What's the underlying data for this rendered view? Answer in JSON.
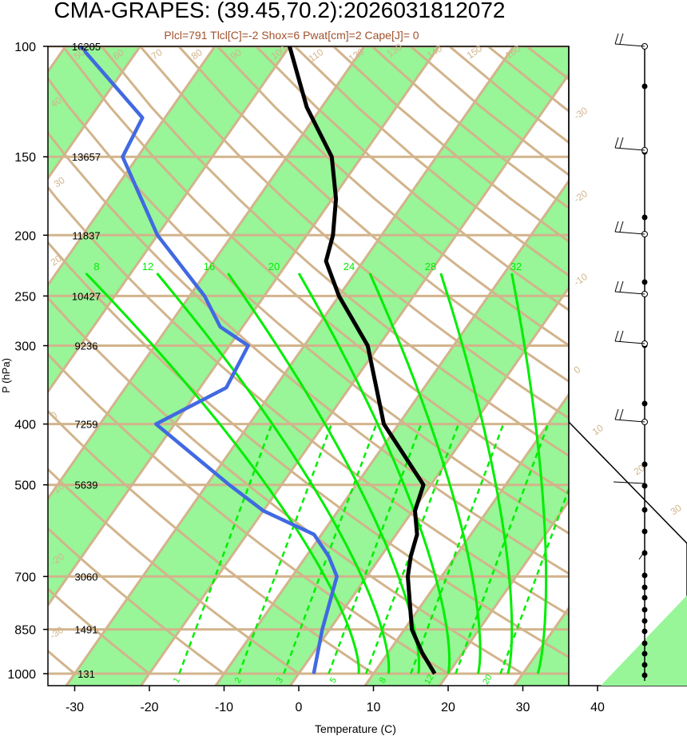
{
  "title": "CMA-GRAPES: (39.45,70.2):2026031812072",
  "subtitle": "Plcl=791 Tlcl[C]=-2 Shox=6 Pwat[cm]=2 Cape[J]= 0",
  "colors": {
    "band": "#98f598",
    "isotherm": "#d2b48c",
    "mixing": "#00ee00",
    "dewpoint": "#4169e1",
    "temperature": "#000000",
    "grid": "#d2b48c"
  },
  "chart_data": {
    "type": "line",
    "xlabel": "Temperature (C)",
    "ylabel": "P (hPa)",
    "x_ticks": [
      -30,
      -20,
      -10,
      0,
      10,
      20,
      30,
      40
    ],
    "x_tick_labels": [
      "-30",
      "-20",
      "-10",
      "0",
      "10",
      "20",
      "30",
      "40"
    ],
    "pressure_levels": [
      100,
      150,
      200,
      250,
      300,
      400,
      500,
      700,
      850,
      1000
    ],
    "pressure_labels": [
      "100",
      "150",
      "200",
      "250",
      "300",
      "400",
      "500",
      "700",
      "850",
      "1000"
    ],
    "heights": [
      "16205",
      "13657",
      "11837",
      "10427",
      "9236",
      "7259",
      "5639",
      "3060",
      "1491",
      "131"
    ],
    "isotherm_labels": [
      "-30",
      "-20",
      "-10",
      "0",
      "10",
      "20",
      "30",
      "40",
      "50",
      "60",
      "70",
      "80",
      "90",
      "100",
      "110",
      "120",
      "130",
      "140",
      "150",
      "160"
    ],
    "mixing_ratio_labels": [
      "1",
      "2",
      "3",
      "5",
      "8",
      "8",
      "12",
      "16",
      "20",
      "24",
      "28",
      "32"
    ],
    "temperature_profile": [
      {
        "p": 1000,
        "t": 18.2
      },
      {
        "p": 925,
        "t": 14.5
      },
      {
        "p": 850,
        "t": 11.0
      },
      {
        "p": 700,
        "t": 5.5
      },
      {
        "p": 650,
        "t": 4.0
      },
      {
        "p": 600,
        "t": 2.8
      },
      {
        "p": 550,
        "t": 0.3
      },
      {
        "p": 500,
        "t": -1.0
      },
      {
        "p": 400,
        "t": -12.0
      },
      {
        "p": 300,
        "t": -21.5
      },
      {
        "p": 250,
        "t": -30.0
      },
      {
        "p": 220,
        "t": -35.0
      },
      {
        "p": 200,
        "t": -36.5
      },
      {
        "p": 175,
        "t": -39.5
      },
      {
        "p": 150,
        "t": -44.0
      },
      {
        "p": 125,
        "t": -52.0
      },
      {
        "p": 100,
        "t": -60.0
      }
    ],
    "dewpoint_profile": [
      {
        "p": 1000,
        "t": 2.0
      },
      {
        "p": 850,
        "t": -1.0
      },
      {
        "p": 700,
        "t": -4.0
      },
      {
        "p": 650,
        "t": -7.0
      },
      {
        "p": 600,
        "t": -11.0
      },
      {
        "p": 550,
        "t": -20.0
      },
      {
        "p": 500,
        "t": -27.0
      },
      {
        "p": 400,
        "t": -42.5
      },
      {
        "p": 350,
        "t": -36.5
      },
      {
        "p": 300,
        "t": -37.5
      },
      {
        "p": 280,
        "t": -43.0
      },
      {
        "p": 250,
        "t": -48.0
      },
      {
        "p": 200,
        "t": -60.0
      },
      {
        "p": 150,
        "t": -72.0
      },
      {
        "p": 130,
        "t": -73.0
      },
      {
        "p": 100,
        "t": -88.0
      }
    ]
  }
}
